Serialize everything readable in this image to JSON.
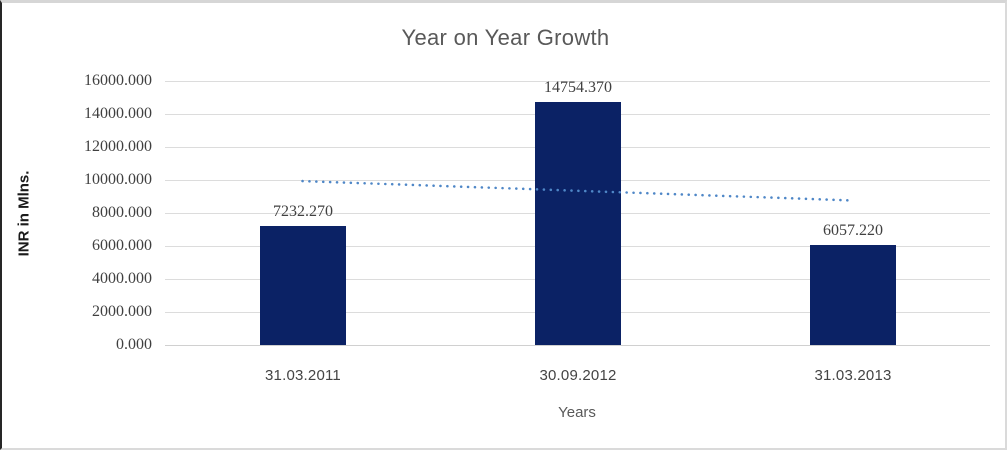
{
  "chart_data": {
    "type": "bar",
    "title": "Year on Year Growth",
    "xlabel": "Years",
    "ylabel": "INR in Mlns.",
    "categories": [
      "31.03.2011",
      "30.09.2012",
      "31.03.2013"
    ],
    "values": [
      7232.27,
      14754.37,
      6057.22
    ],
    "data_labels": [
      "7232.270",
      "14754.370",
      "6057.220"
    ],
    "ylim": [
      0,
      16000
    ],
    "y_tick_step": 2000,
    "y_tick_labels": [
      "0.000",
      "2000.000",
      "4000.000",
      "6000.000",
      "8000.000",
      "10000.000",
      "12000.000",
      "14000.000",
      "16000.000"
    ],
    "grid": true,
    "legend": "none",
    "trendline": {
      "type": "linear",
      "style": "dotted",
      "start_value": 9935,
      "end_value": 8760
    },
    "colors": {
      "bar": "#0b2265",
      "trendline": "#4f87c7",
      "gridline": "#dcdcdc",
      "title_text": "#595959",
      "tick_text": "#3f3f3f"
    }
  }
}
